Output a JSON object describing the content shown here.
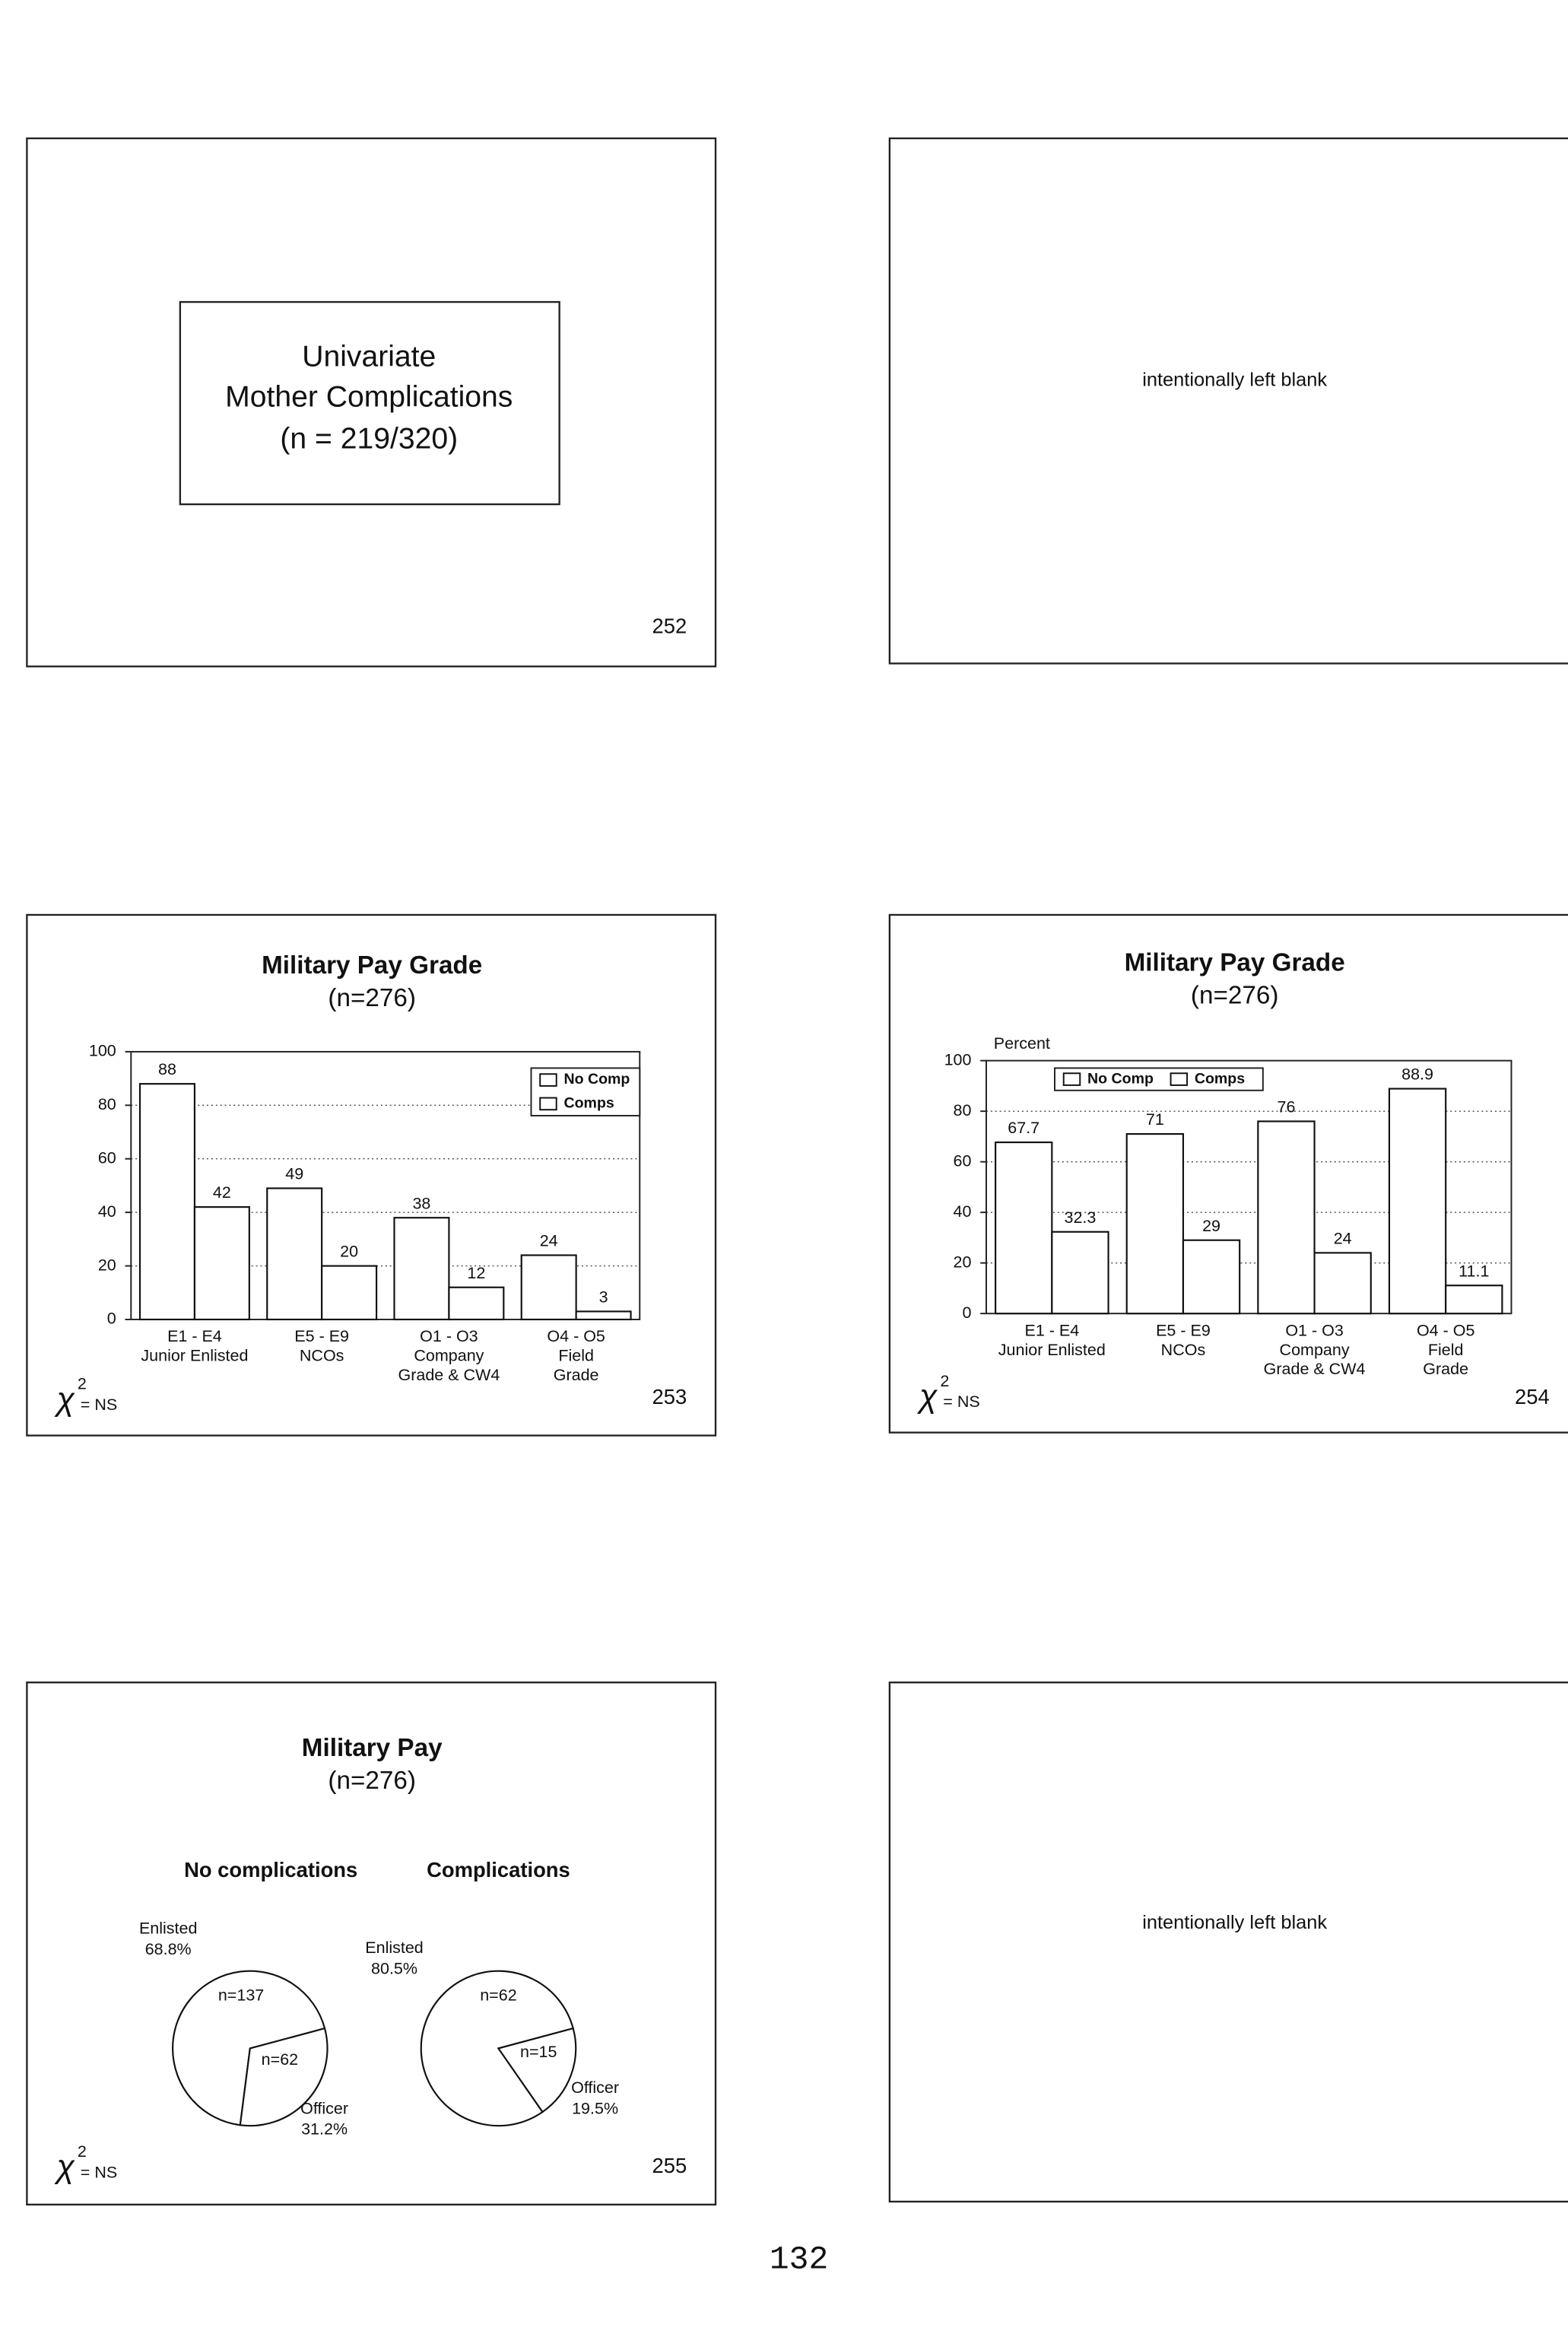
{
  "slides": [
    {
      "lines": [
        "Univariate",
        "Mother Complications",
        "(n = 219/320)"
      ],
      "number": "252"
    },
    {
      "text": "intentionally left blank"
    },
    {
      "chart_data": {
        "type": "bar",
        "title": "Military Pay Grade",
        "subtitle": "(n=276)",
        "categories": [
          [
            "E1 - E4",
            "Junior Enlisted"
          ],
          [
            "E5 - E9",
            "NCOs"
          ],
          [
            "O1 - O3",
            "Company",
            "Grade & CW4"
          ],
          [
            "O4 - O5",
            "Field",
            "Grade"
          ]
        ],
        "series": [
          {
            "name": "No Comp",
            "color": "#ffffff",
            "values": [
              88,
              49,
              38,
              24
            ]
          },
          {
            "name": "Comps",
            "color": "#ffffff",
            "values": [
              42,
              20,
              12,
              3
            ]
          }
        ],
        "ylim": [
          0,
          100
        ],
        "yticks": [
          0,
          20,
          40,
          60,
          80,
          100
        ],
        "grid": true,
        "legend": "top-right"
      },
      "chi_symbol": "χ",
      "chi_exp": "2",
      "chi_text": "= NS",
      "number": "253"
    },
    {
      "chart_data": {
        "type": "bar",
        "title": "Military Pay Grade",
        "subtitle": "(n=276)",
        "y_label": "Percent",
        "categories": [
          [
            "E1 - E4",
            "Junior Enlisted"
          ],
          [
            "E5 - E9",
            "NCOs"
          ],
          [
            "O1 - O3",
            "Company",
            "Grade & CW4"
          ],
          [
            "O4 - O5",
            "Field",
            "Grade"
          ]
        ],
        "series": [
          {
            "name": "No Comp",
            "color": "#ffffff",
            "values": [
              67.7,
              71,
              76,
              88.9
            ]
          },
          {
            "name": "Comps",
            "color": "#ffffff",
            "values": [
              32.3,
              29,
              24,
              11.1
            ]
          }
        ],
        "ylim": [
          0,
          100
        ],
        "yticks": [
          0,
          20,
          40,
          60,
          80,
          100
        ],
        "grid": true,
        "legend": "top-left"
      },
      "chi_symbol": "χ",
      "chi_exp": "2",
      "chi_text": "= NS",
      "number": "254"
    },
    {
      "chart_data": {
        "type": "pie",
        "title": "Military Pay",
        "subtitle": "(n=276)",
        "pies": [
          {
            "title": "No complications",
            "categories": [
              "Enlisted",
              "Officer"
            ],
            "values": [
              68.8,
              31.2
            ],
            "value_labels": [
              "68.8%",
              "31.2%"
            ],
            "n_labels": [
              "n=137",
              "n=62"
            ]
          },
          {
            "title": "Complications",
            "categories": [
              "Enlisted",
              "Officer"
            ],
            "values": [
              80.5,
              19.5
            ],
            "value_labels": [
              "80.5%",
              "19.5%"
            ],
            "n_labels": [
              "n=62",
              "n=15"
            ]
          }
        ]
      },
      "chi_symbol": "χ",
      "chi_exp": "2",
      "chi_text": "= NS",
      "number": "255"
    },
    {
      "text": "intentionally left blank"
    }
  ],
  "page_number": "132"
}
